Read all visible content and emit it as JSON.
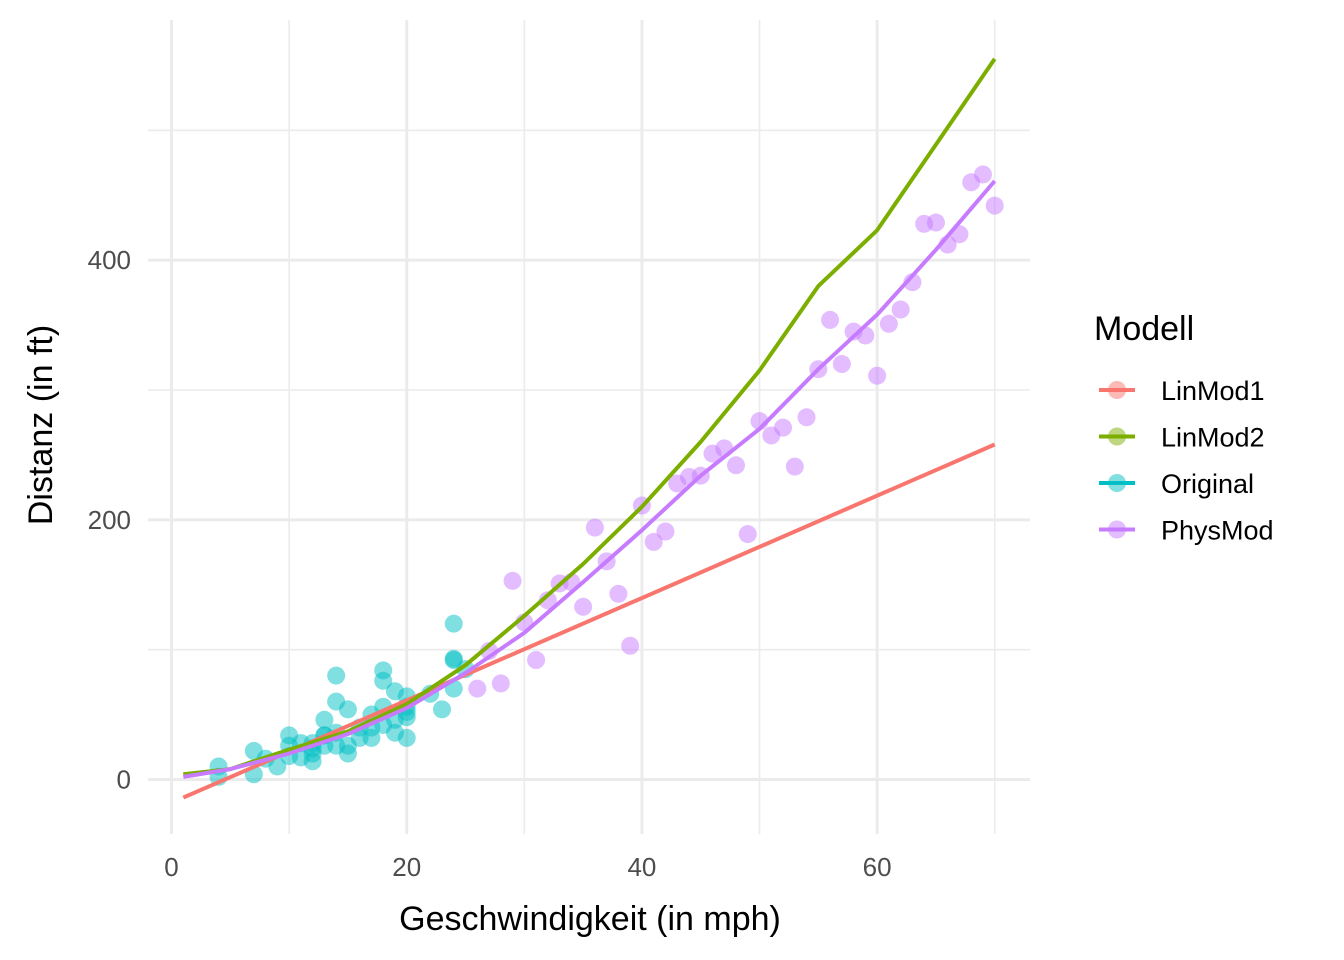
{
  "chart_data": {
    "type": "scatter",
    "xlabel": "Geschwindigkeit (in mph)",
    "ylabel": "Distanz (in ft)",
    "xlim": [
      -2,
      73
    ],
    "ylim": [
      -42,
      585
    ],
    "x_ticks": [
      0,
      20,
      40,
      60
    ],
    "y_ticks": [
      0,
      200,
      400
    ],
    "x_tick_labels": [
      "0",
      "20",
      "40",
      "60"
    ],
    "y_tick_labels": [
      "0",
      "200",
      "400"
    ],
    "grid": true,
    "legend": {
      "title": "Modell",
      "placement": "right",
      "entries": [
        "LinMod1",
        "LinMod2",
        "Original",
        "PhysMod"
      ]
    },
    "series": [
      {
        "name": "LinMod1",
        "color": "#F8766D",
        "kind": "line",
        "x": [
          1,
          70
        ],
        "y": [
          -14,
          258
        ]
      },
      {
        "name": "LinMod2",
        "color": "#7CAE00",
        "kind": "line",
        "x": [
          1,
          5,
          10,
          15,
          20,
          25,
          30,
          35,
          40,
          45,
          50,
          55,
          60,
          65,
          70
        ],
        "y": [
          4,
          8,
          23,
          37,
          58,
          88,
          126,
          166,
          210,
          260,
          315,
          380,
          423,
          489,
          555
        ]
      },
      {
        "name": "Original",
        "color": "#00BFC4",
        "kind": "points",
        "x": [
          4,
          4,
          7,
          7,
          8,
          9,
          10,
          10,
          10,
          11,
          11,
          12,
          12,
          12,
          12,
          13,
          13,
          13,
          13,
          14,
          14,
          14,
          14,
          15,
          15,
          15,
          16,
          16,
          17,
          17,
          17,
          18,
          18,
          18,
          18,
          19,
          19,
          19,
          20,
          20,
          20,
          20,
          20,
          22,
          23,
          24,
          24,
          24,
          24,
          25
        ],
        "y": [
          2,
          10,
          4,
          22,
          16,
          10,
          18,
          26,
          34,
          17,
          28,
          14,
          20,
          24,
          28,
          26,
          34,
          34,
          46,
          26,
          36,
          60,
          80,
          20,
          26,
          54,
          32,
          40,
          32,
          40,
          50,
          42,
          56,
          76,
          84,
          36,
          46,
          68,
          32,
          48,
          52,
          56,
          64,
          66,
          54,
          70,
          92,
          93,
          120,
          85
        ]
      },
      {
        "name": "PhysMod",
        "color": "#C77CFF",
        "kind": "points",
        "x": [
          26,
          27,
          28,
          29,
          30,
          31,
          32,
          33,
          34,
          35,
          36,
          37,
          38,
          39,
          40,
          41,
          42,
          43,
          44,
          45,
          46,
          47,
          48,
          49,
          50,
          51,
          52,
          53,
          54,
          55,
          56,
          57,
          58,
          59,
          60,
          61,
          62,
          63,
          64,
          65,
          66,
          67,
          68,
          69,
          70
        ],
        "y": [
          70,
          99,
          74,
          153,
          121,
          92,
          138,
          151,
          152,
          133,
          194,
          168,
          143,
          103,
          211,
          183,
          191,
          228,
          233,
          234,
          251,
          255,
          242,
          189,
          276,
          265,
          271,
          241,
          279,
          316,
          354,
          320,
          345,
          342,
          311,
          351,
          362,
          383,
          428,
          429,
          412,
          420,
          460,
          466,
          442
        ]
      },
      {
        "name": "PhysMod",
        "color": "#C77CFF",
        "kind": "line",
        "x": [
          1,
          5,
          10,
          15,
          20,
          25,
          30,
          35,
          40,
          45,
          50,
          55,
          60,
          65,
          70
        ],
        "y": [
          2,
          8,
          20,
          35,
          55,
          82,
          113,
          152,
          192,
          234,
          270,
          316,
          358,
          408,
          461
        ]
      }
    ]
  }
}
